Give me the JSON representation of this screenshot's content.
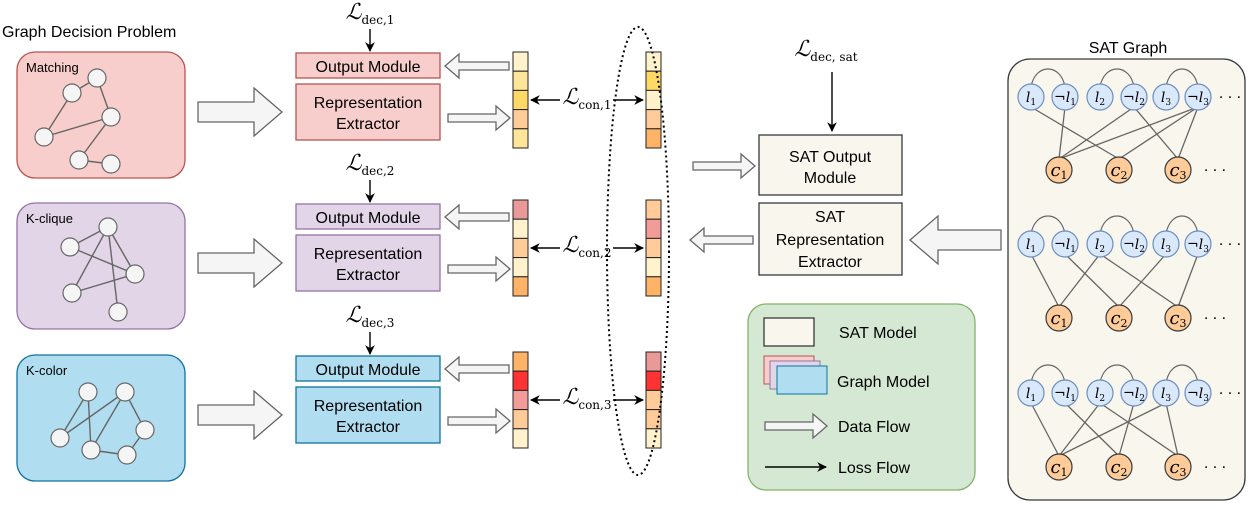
{
  "title": "Graph Decision Problem",
  "problems": [
    {
      "name": "Matching",
      "fill": "#f8cecc",
      "stroke": "#b85450",
      "output_label": "Output Module",
      "extractor_label": [
        "Representation",
        "Extractor"
      ],
      "loss_dec": {
        "main": "ℒ",
        "sub": "dec,1"
      },
      "loss_con": {
        "main": "ℒ",
        "sub": "con,1"
      },
      "edges": [
        [
          0,
          1
        ],
        [
          1,
          2
        ],
        [
          0,
          3
        ],
        [
          3,
          2
        ],
        [
          2,
          4
        ],
        [
          4,
          5
        ]
      ],
      "vec_left": [
        "#fff2cc",
        "#ffe599",
        "#ffd966",
        "#ffcc99",
        "#ffe599"
      ],
      "vec_right": [
        "#fff2cc",
        "#ffd966",
        "#fff2cc",
        "#ffcc99",
        "#ffb366"
      ]
    },
    {
      "name": "K-clique",
      "fill": "#e1d5e7",
      "stroke": "#9673a6",
      "output_label": "Output Module",
      "extractor_label": [
        "Representation",
        "Extractor"
      ],
      "loss_dec": {
        "main": "ℒ",
        "sub": "dec,2"
      },
      "loss_con": {
        "main": "ℒ",
        "sub": "con,2"
      },
      "edges": [
        [
          0,
          1
        ],
        [
          1,
          2
        ],
        [
          0,
          2
        ],
        [
          0,
          3
        ],
        [
          3,
          2
        ],
        [
          0,
          4
        ]
      ],
      "vec_left": [
        "#ea9999",
        "#fff2cc",
        "#ffcc99",
        "#fff2cc",
        "#ffb366"
      ],
      "vec_right": [
        "#ffcc99",
        "#f19c99",
        "#ffcc99",
        "#fff2cc",
        "#ffb366"
      ]
    },
    {
      "name": "K-color",
      "fill": "#b1ddf0",
      "stroke": "#10739e",
      "output_label": "Output Module",
      "extractor_label": [
        "Representation",
        "Extractor"
      ],
      "loss_dec": {
        "main": "ℒ",
        "sub": "dec,3"
      },
      "loss_con": {
        "main": "ℒ",
        "sub": "con,3"
      },
      "edges": [
        [
          2,
          0
        ],
        [
          2,
          1
        ],
        [
          0,
          4
        ],
        [
          1,
          4
        ],
        [
          1,
          3
        ],
        [
          3,
          5
        ],
        [
          4,
          5
        ]
      ],
      "vec_left": [
        "#ffb366",
        "#ff3333",
        "#f19c99",
        "#ffcc99",
        "#fff2cc"
      ],
      "vec_right": [
        "#ea9999",
        "#ff3333",
        "#ffcc99",
        "#ffcc99",
        "#fff2cc"
      ]
    }
  ],
  "sat": {
    "loss_dec": {
      "main": "ℒ",
      "sub": "dec, sat"
    },
    "output_label": [
      "SAT Output",
      "Module"
    ],
    "extractor_label": [
      "SAT",
      "Representation",
      "Extractor"
    ],
    "fill": "#f9f7ed",
    "stroke": "#36393d",
    "graph_title": "SAT Graph",
    "literals": [
      [
        "l",
        "1",
        ""
      ],
      [
        "l",
        "1",
        "¬"
      ],
      [
        "l",
        "2",
        ""
      ],
      [
        "l",
        "2",
        "¬"
      ],
      [
        "l",
        "3",
        ""
      ],
      [
        "l",
        "3",
        "¬"
      ]
    ],
    "clauses": [
      [
        "c",
        "1"
      ],
      [
        "c",
        "2"
      ],
      [
        "c",
        "3"
      ]
    ],
    "ellipsis": "· · ·",
    "literal_fill": "#dae8fc",
    "literal_stroke": "#6c8ebf",
    "clause_fill": "#ffcc99",
    "clause_stroke": "#36393d",
    "graphs": [
      {
        "edges": [
          [
            0,
            1
          ],
          [
            1,
            0
          ],
          [
            3,
            0
          ],
          [
            3,
            2
          ],
          [
            5,
            0
          ],
          [
            5,
            1
          ],
          [
            5,
            2
          ]
        ]
      },
      {
        "edges": [
          [
            0,
            0
          ],
          [
            1,
            1
          ],
          [
            2,
            0
          ],
          [
            2,
            2
          ],
          [
            4,
            1
          ],
          [
            5,
            2
          ]
        ]
      },
      {
        "edges": [
          [
            0,
            0
          ],
          [
            1,
            1
          ],
          [
            2,
            0
          ],
          [
            2,
            2
          ],
          [
            3,
            1
          ],
          [
            4,
            0
          ],
          [
            4,
            2
          ]
        ]
      }
    ]
  },
  "legend": {
    "fill": "#d5e8d4",
    "stroke": "#82b366",
    "sat_model": "SAT Model",
    "graph_model": "Graph Model",
    "data_flow": "Data Flow",
    "loss_flow": "Loss Flow"
  }
}
